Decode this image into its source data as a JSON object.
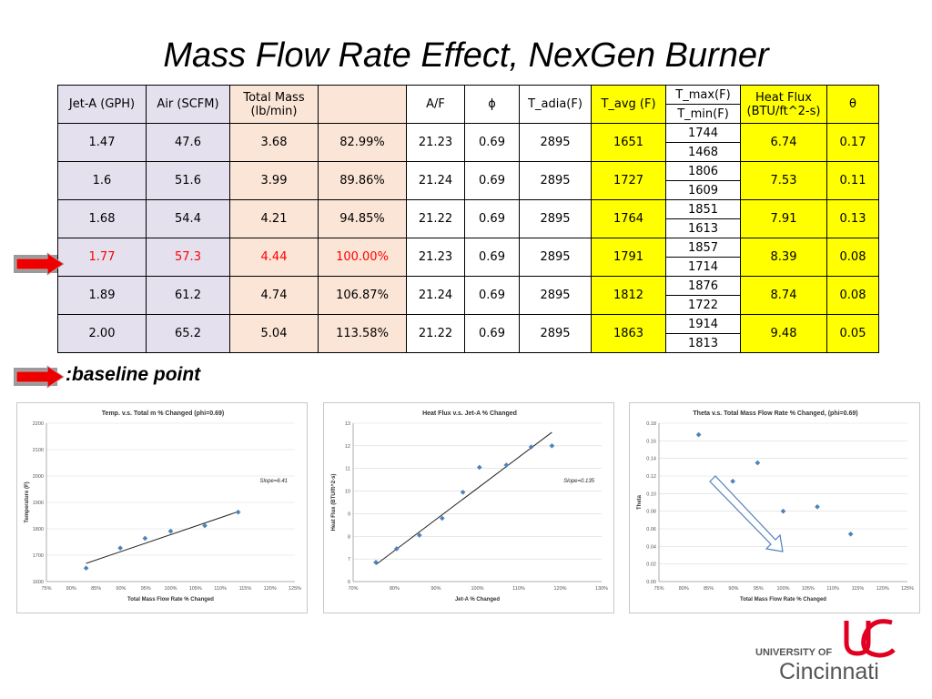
{
  "title": "Mass Flow Rate Effect, NexGen Burner",
  "table": {
    "headers": {
      "jet_a": "Jet-A (GPH)",
      "air": "Air (SCFM)",
      "total_mass_1": "Total Mass",
      "total_mass_2": "(lb/min)",
      "blank": "",
      "af": "A/F",
      "phi": "ϕ",
      "t_adia": "T_adia(F)",
      "t_avg": "T_avg (F)",
      "t_max": "T_max(F)",
      "t_min": "T_min(F)",
      "heat_flux_1": "Heat Flux",
      "heat_flux_2": "(BTU/ft^2-s)",
      "theta": "θ"
    },
    "rows": [
      {
        "jet_a": "1.47",
        "air": "47.6",
        "mass": "3.68",
        "pct": "82.99%",
        "af": "21.23",
        "phi": "0.69",
        "t_adia": "2895",
        "t_avg": "1651",
        "t_max": "1744",
        "t_min": "1468",
        "flux": "6.74",
        "theta": "0.17"
      },
      {
        "jet_a": "1.6",
        "air": "51.6",
        "mass": "3.99",
        "pct": "89.86%",
        "af": "21.24",
        "phi": "0.69",
        "t_adia": "2895",
        "t_avg": "1727",
        "t_max": "1806",
        "t_min": "1609",
        "flux": "7.53",
        "theta": "0.11"
      },
      {
        "jet_a": "1.68",
        "air": "54.4",
        "mass": "4.21",
        "pct": "94.85%",
        "af": "21.22",
        "phi": "0.69",
        "t_adia": "2895",
        "t_avg": "1764",
        "t_max": "1851",
        "t_min": "1613",
        "flux": "7.91",
        "theta": "0.13"
      },
      {
        "jet_a": "1.77",
        "air": "57.3",
        "mass": "4.44",
        "pct": "100.00%",
        "af": "21.23",
        "phi": "0.69",
        "t_adia": "2895",
        "t_avg": "1791",
        "t_max": "1857",
        "t_min": "1714",
        "flux": "8.39",
        "theta": "0.08"
      },
      {
        "jet_a": "1.89",
        "air": "61.2",
        "mass": "4.74",
        "pct": "106.87%",
        "af": "21.24",
        "phi": "0.69",
        "t_adia": "2895",
        "t_avg": "1812",
        "t_max": "1876",
        "t_min": "1722",
        "flux": "8.74",
        "theta": "0.08"
      },
      {
        "jet_a": "2.00",
        "air": "65.2",
        "mass": "5.04",
        "pct": "113.58%",
        "af": "21.22",
        "phi": "0.69",
        "t_adia": "2895",
        "t_avg": "1863",
        "t_max": "1914",
        "t_min": "1813",
        "flux": "9.48",
        "theta": "0.05"
      }
    ]
  },
  "baseline_label": ":baseline point",
  "colors": {
    "header_lavender": "#e4e0ee",
    "peach": "#fbe5d6",
    "yellow": "#ffff00",
    "highlight_red": "#ff0000",
    "marker_blue": "#4f81bd",
    "uc_red": "#e00122"
  },
  "logo": {
    "line1": "UNIVERSITY OF",
    "line2": "Cincinnati"
  },
  "chart_data": [
    {
      "type": "scatter",
      "title": "Temp. v.s. Total m % Changed (phi=0.69)",
      "xlabel": "Total Mass Flow Rate % Changed",
      "ylabel": "Temperature (F)",
      "annotation": "Slope=6.41",
      "xlim": [
        75,
        125
      ],
      "ylim": [
        1600,
        2200
      ],
      "xticks": [
        "75%",
        "80%",
        "85%",
        "90%",
        "95%",
        "100%",
        "105%",
        "110%",
        "115%",
        "120%",
        "125%"
      ],
      "yticks": [
        "1600",
        "1700",
        "1800",
        "1900",
        "2000",
        "2100",
        "2200"
      ],
      "x": [
        82.99,
        89.86,
        94.85,
        100.0,
        106.87,
        113.58
      ],
      "y": [
        1651,
        1727,
        1764,
        1791,
        1812,
        1863
      ],
      "trendline": [
        [
          82.99,
          1669
        ],
        [
          113.58,
          1865
        ]
      ]
    },
    {
      "type": "scatter",
      "title": "Heat Flux v.s. Jet-A % Changed",
      "xlabel": "Jet-A % Changed",
      "ylabel": "Heat Flux (BTU/ft^2-s)",
      "annotation": "Slope=0.135",
      "xlim": [
        70,
        130
      ],
      "ylim": [
        6,
        13
      ],
      "xticks": [
        "70%",
        "80%",
        "90%",
        "100%",
        "110%",
        "120%",
        "130%"
      ],
      "yticks": [
        "6",
        "7",
        "8",
        "9",
        "10",
        "11",
        "12",
        "13"
      ],
      "x": [
        75.5,
        80.5,
        86,
        91.5,
        96.5,
        100.5,
        107,
        113,
        118
      ],
      "y": [
        6.85,
        7.45,
        8.05,
        8.8,
        9.95,
        11.05,
        11.15,
        11.95,
        12.0
      ],
      "trendline": [
        [
          75.5,
          6.75
        ],
        [
          118,
          12.6
        ]
      ]
    },
    {
      "type": "scatter",
      "title": "Theta v.s. Total Mass Flow Rate % Changed, (phi=0.69)",
      "xlabel": "Total Mass Flow Rate % Changed",
      "ylabel": "Theta",
      "xlim": [
        75,
        125
      ],
      "ylim": [
        0,
        0.18
      ],
      "xticks": [
        "75%",
        "80%",
        "85%",
        "90%",
        "95%",
        "100%",
        "105%",
        "110%",
        "115%",
        "120%",
        "125%"
      ],
      "yticks": [
        "0.00",
        "0.02",
        "0.04",
        "0.06",
        "0.08",
        "0.10",
        "0.12",
        "0.14",
        "0.16",
        "0.18"
      ],
      "x": [
        82.99,
        89.86,
        94.85,
        100.0,
        106.87,
        113.58
      ],
      "y": [
        0.167,
        0.114,
        0.135,
        0.08,
        0.085,
        0.054
      ]
    }
  ]
}
